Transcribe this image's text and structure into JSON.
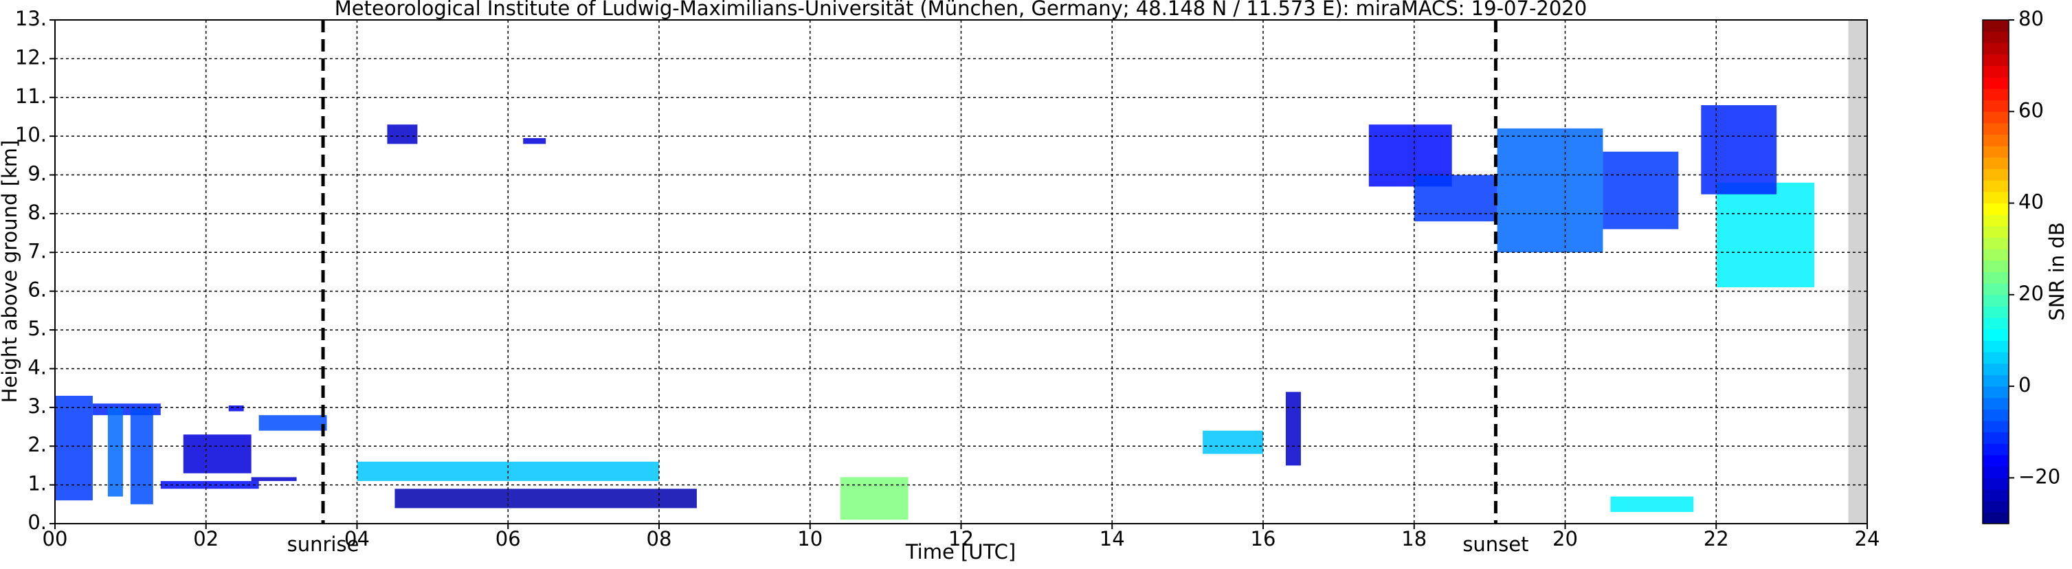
{
  "chart_data": {
    "type": "time-height",
    "title": "Meteorological Institute of Ludwig-Maximilians-Universität (München, Germany; 48.148 N / 11.573 E):    miraMACS: 19-07-2020",
    "x_label": "Time [UTC]",
    "y_label": "Height above ground [km]",
    "xlim": [
      0,
      24
    ],
    "ylim": [
      0,
      13
    ],
    "xticks": [
      {
        "value": 0,
        "label": "00"
      },
      {
        "value": 2,
        "label": "02"
      },
      {
        "value": 4,
        "label": "04"
      },
      {
        "value": 6,
        "label": "06"
      },
      {
        "value": 8,
        "label": "08"
      },
      10,
      12,
      14,
      16,
      18,
      20,
      22,
      24
    ],
    "yticks": [
      {
        "value": 0,
        "label": "0."
      },
      {
        "value": 1,
        "label": "1."
      },
      {
        "value": 2,
        "label": "2."
      },
      {
        "value": 3,
        "label": "3."
      },
      {
        "value": 4,
        "label": "4."
      },
      {
        "value": 5,
        "label": "5."
      },
      {
        "value": 6,
        "label": "6."
      },
      {
        "value": 7,
        "label": "7."
      },
      {
        "value": 8,
        "label": "8."
      },
      {
        "value": 9,
        "label": "9."
      },
      {
        "value": 10,
        "label": "10."
      },
      {
        "value": 11,
        "label": "11."
      },
      {
        "value": 12,
        "label": "12."
      },
      {
        "value": 13,
        "label": "13."
      }
    ],
    "grid": true,
    "markers": [
      {
        "x": 3.55,
        "label": "sunrise"
      },
      {
        "x": 19.08,
        "label": "sunset"
      }
    ],
    "no_data": [
      23.75,
      24
    ],
    "colorbar": {
      "label": "SNR in dB",
      "colormap": "jet",
      "lim": [
        -30,
        80
      ],
      "ticks": [
        {
          "value": -20,
          "label": "−20"
        },
        0,
        20,
        40,
        60,
        80
      ]
    },
    "cells": [
      [
        0.0,
        0.5,
        0.6,
        3.3,
        -10
      ],
      [
        0.5,
        1.4,
        2.8,
        3.1,
        -12
      ],
      [
        0.7,
        0.9,
        0.7,
        3.0,
        -5
      ],
      [
        1.0,
        1.3,
        0.5,
        3.0,
        -8
      ],
      [
        1.4,
        2.7,
        0.9,
        1.1,
        -15
      ],
      [
        2.3,
        2.5,
        2.9,
        3.05,
        -18
      ],
      [
        1.7,
        2.6,
        1.3,
        2.3,
        -20
      ],
      [
        2.7,
        3.6,
        2.4,
        2.8,
        -8
      ],
      [
        2.6,
        3.2,
        1.1,
        1.2,
        -22
      ],
      [
        4.4,
        4.8,
        9.8,
        10.3,
        -22
      ],
      [
        6.2,
        6.5,
        9.8,
        9.95,
        -20
      ],
      [
        4.5,
        8.5,
        0.4,
        0.9,
        -25
      ],
      [
        4.0,
        8.0,
        1.1,
        1.6,
        5
      ],
      [
        10.4,
        11.3,
        0.1,
        1.2,
        25
      ],
      [
        16.3,
        16.5,
        1.5,
        3.4,
        -22
      ],
      [
        17.4,
        18.5,
        8.7,
        10.3,
        -15
      ],
      [
        18.0,
        19.1,
        7.8,
        9.0,
        -10
      ],
      [
        19.1,
        20.5,
        7.0,
        10.2,
        -5
      ],
      [
        20.5,
        21.5,
        7.6,
        9.6,
        -10
      ],
      [
        22.0,
        23.3,
        6.1,
        8.8,
        10
      ],
      [
        21.8,
        22.8,
        8.5,
        10.8,
        -12
      ],
      [
        20.6,
        21.7,
        0.3,
        0.7,
        10
      ],
      [
        15.2,
        16.0,
        1.8,
        2.4,
        5
      ]
    ]
  }
}
